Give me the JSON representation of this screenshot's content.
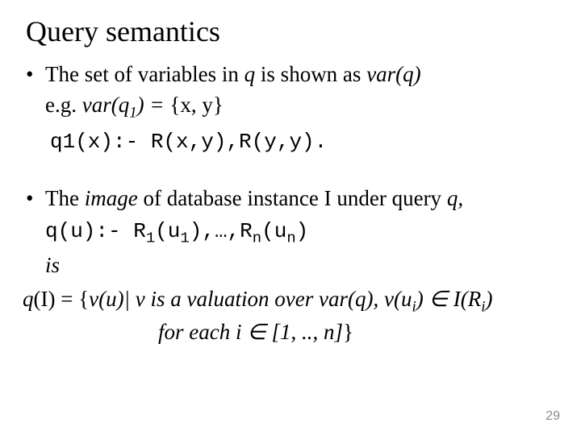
{
  "title": "Query semantics",
  "bullet1": {
    "line1_pre": "The set of variables in ",
    "line1_q": "q",
    "line1_mid": " is shown as ",
    "line1_varq": "var(q)",
    "line2_pre": "e.g. ",
    "line2_var": "var(q",
    "line2_sub": "1",
    "line2_post": ") = ",
    "line2_set": "{x, y}",
    "code": "q1(x):- R(x,y),R(y,y)."
  },
  "bullet2": {
    "line1_pre": "The ",
    "line1_image": "image",
    "line1_mid": " of database instance I under query ",
    "line1_q": "q,",
    "code_pre": "q(u):- R",
    "code_s1": "1",
    "code_mid1": "(u",
    "code_s2": "1",
    "code_mid2": "),…,R",
    "code_s3": "n",
    "code_mid3": "(u",
    "code_s4": "n",
    "code_end": ")",
    "is": "is",
    "qline_pre": "q",
    "qline_text1": "(I) = {",
    "qline_vu": "v(u)| v is a valuation over var(q),",
    "qline_math": " v(u",
    "qline_math_i": "i",
    "qline_math_mid": ") ∈ I(R",
    "qline_math_i2": "i",
    "qline_math_end": ")",
    "for_pre": "for each ",
    "for_math": "i ∈ [1, .., n]",
    "for_end": "}"
  },
  "page": "29",
  "colors": {
    "text": "#000000",
    "bg": "#ffffff",
    "pagenum": "#8a8a8a"
  }
}
